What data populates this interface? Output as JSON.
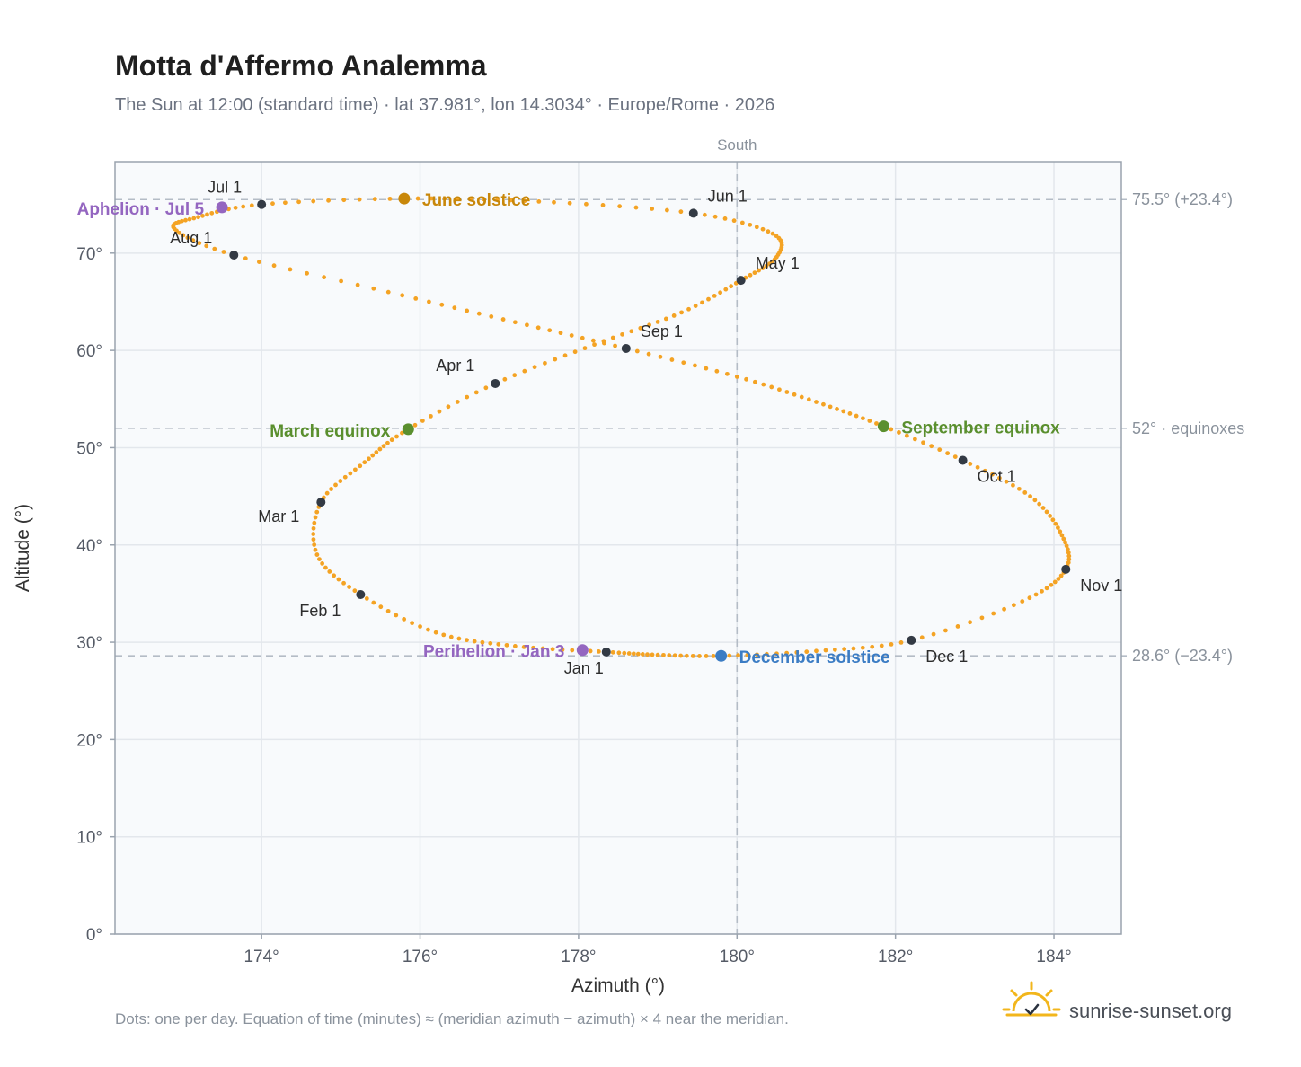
{
  "chart_data": {
    "type": "scatter",
    "title": "Motta d'Affermo Analemma",
    "subtitle": "The Sun at 12:00 (standard time) · lat 37.981°, lon 14.3034° · Europe/Rome · 2026",
    "xlabel": "Azimuth (°)",
    "ylabel": "Altitude (°)",
    "xlim": [
      172.15,
      184.85
    ],
    "ylim": [
      0,
      79.4
    ],
    "xticks": [
      174,
      176,
      178,
      180,
      182,
      184
    ],
    "xtick_labels": [
      "174°",
      "176°",
      "178°",
      "180°",
      "182°",
      "184°"
    ],
    "yticks": [
      0,
      10,
      20,
      30,
      40,
      50,
      60,
      70
    ],
    "ytick_labels": [
      "0°",
      "10°",
      "20°",
      "30°",
      "40°",
      "50°",
      "60°",
      "70°"
    ],
    "grid": true,
    "colors": {
      "curve": "#f4a324",
      "month_marker": "#333a44",
      "june_solstice": "#c8870a",
      "december_solstice": "#3b7cc4",
      "equinox": "#5a8f2e",
      "aphelion_perihelion": "#9466c0",
      "reference_line": "#b4bcc6",
      "plot_background": "#f8fafc"
    },
    "meridian": {
      "azimuth": 180,
      "label": "South"
    },
    "reference_lines": [
      {
        "altitude": 75.5,
        "label": "75.5° (+23.4°)"
      },
      {
        "altitude": 52,
        "label": "52° · equinoxes"
      },
      {
        "altitude": 28.6,
        "label": "28.6° (−23.4°)"
      }
    ],
    "month_points": [
      {
        "label": "Jan 1",
        "azimuth": 178.35,
        "altitude": 29.0
      },
      {
        "label": "Feb 1",
        "azimuth": 175.25,
        "altitude": 34.9
      },
      {
        "label": "Mar 1",
        "azimuth": 174.75,
        "altitude": 44.4
      },
      {
        "label": "Apr 1",
        "azimuth": 176.95,
        "altitude": 56.6
      },
      {
        "label": "May 1",
        "azimuth": 180.05,
        "altitude": 67.2
      },
      {
        "label": "Jun 1",
        "azimuth": 179.45,
        "altitude": 74.1
      },
      {
        "label": "Jul 1",
        "azimuth": 174.0,
        "altitude": 75.0
      },
      {
        "label": "Aug 1",
        "azimuth": 173.65,
        "altitude": 69.8
      },
      {
        "label": "Sep 1",
        "azimuth": 178.6,
        "altitude": 60.2
      },
      {
        "label": "Oct 1",
        "azimuth": 182.85,
        "altitude": 48.7
      },
      {
        "label": "Nov 1",
        "azimuth": 184.15,
        "altitude": 37.5
      },
      {
        "label": "Dec 1",
        "azimuth": 182.2,
        "altitude": 30.2
      }
    ],
    "events": [
      {
        "label": "June solstice",
        "azimuth": 175.8,
        "altitude": 75.6,
        "color": "#c8870a"
      },
      {
        "label": "December solstice",
        "azimuth": 179.8,
        "altitude": 28.6,
        "color": "#3b7cc4"
      },
      {
        "label": "March equinox",
        "azimuth": 175.85,
        "altitude": 51.9,
        "color": "#5a8f2e"
      },
      {
        "label": "September equinox",
        "azimuth": 181.85,
        "altitude": 52.2,
        "color": "#5a8f2e"
      },
      {
        "label": "Aphelion · Jul 5",
        "azimuth": 173.5,
        "altitude": 74.7,
        "color": "#9466c0"
      },
      {
        "label": "Perihelion · Jan 3",
        "azimuth": 178.05,
        "altitude": 29.2,
        "color": "#9466c0"
      }
    ],
    "daily_path": [
      [
        178.35,
        29.0
      ],
      [
        177.2,
        29.6
      ],
      [
        176.2,
        31.0
      ],
      [
        175.25,
        34.9
      ],
      [
        174.7,
        39.0
      ],
      [
        174.75,
        44.4
      ],
      [
        175.3,
        48.5
      ],
      [
        175.85,
        51.9
      ],
      [
        176.95,
        56.6
      ],
      [
        178.2,
        60.6
      ],
      [
        179.3,
        63.9
      ],
      [
        180.05,
        67.2
      ],
      [
        180.5,
        69.6
      ],
      [
        180.45,
        72.0
      ],
      [
        179.45,
        74.1
      ],
      [
        177.5,
        75.3
      ],
      [
        175.8,
        75.6
      ],
      [
        174.0,
        75.0
      ],
      [
        173.2,
        73.7
      ],
      [
        172.9,
        72.5
      ],
      [
        173.65,
        69.8
      ],
      [
        175.6,
        66.0
      ],
      [
        177.2,
        62.9
      ],
      [
        178.6,
        60.2
      ],
      [
        180.0,
        57.3
      ],
      [
        181.0,
        54.7
      ],
      [
        181.85,
        52.2
      ],
      [
        182.85,
        48.7
      ],
      [
        183.7,
        45.0
      ],
      [
        184.1,
        41.0
      ],
      [
        184.15,
        37.5
      ],
      [
        183.6,
        34.2
      ],
      [
        182.2,
        30.2
      ],
      [
        181.0,
        29.1
      ],
      [
        179.8,
        28.6
      ],
      [
        179.0,
        28.7
      ],
      [
        178.35,
        29.0
      ]
    ]
  },
  "footnote": "Dots: one per day. Equation of time (minutes) ≈ (meridian azimuth − azimuth) × 4 near the meridian.",
  "brand": {
    "name": "sunrise-sunset.org",
    "icon": "sun-icon"
  }
}
